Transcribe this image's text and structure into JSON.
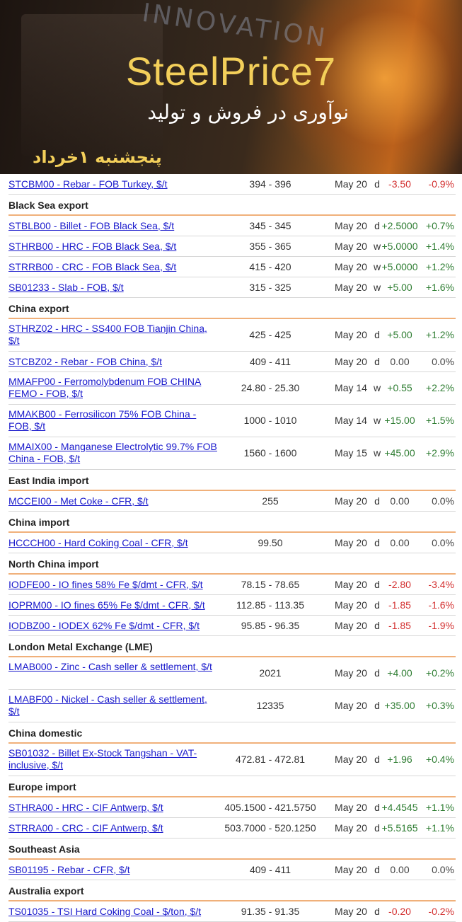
{
  "banner": {
    "brand": "SteelPrice7",
    "tagline": "نوآوری در فروش و تولید",
    "date": "پنجشنبه ۱خرداد",
    "watermark": "INNOVATION",
    "accent": "#f3cf5a"
  },
  "rows": [
    {
      "type": "item",
      "name": "STCBM00 - Rebar - FOB Turkey, $/t",
      "range": "394 - 396",
      "date": "May 20",
      "freq": "d",
      "chg": "-3.50",
      "pct": "-0.9%",
      "dir": "neg",
      "h": 28
    },
    {
      "type": "section",
      "name": "Black Sea export"
    },
    {
      "type": "item",
      "name": "STBLB00 - Billet - FOB Black Sea, $/t",
      "range": "345 - 345",
      "date": "May 20",
      "freq": "d",
      "chg": "+2.5000",
      "pct": "+0.7%",
      "dir": "pos",
      "h": 28
    },
    {
      "type": "item",
      "name": "STHRB00 - HRC - FOB Black Sea, $/t",
      "range": "355 - 365",
      "date": "May 20",
      "freq": "w",
      "chg": "+5.0000",
      "pct": "+1.4%",
      "dir": "pos",
      "h": 28
    },
    {
      "type": "item",
      "name": "STRRB00 - CRC - FOB Black Sea, $/t",
      "range": "415 - 420",
      "date": "May 20",
      "freq": "w",
      "chg": "+5.0000",
      "pct": "+1.2%",
      "dir": "pos",
      "h": 28
    },
    {
      "type": "item",
      "name": "SB01233 - Slab - FOB, $/t",
      "range": "315 - 325",
      "date": "May 20",
      "freq": "w",
      "chg": "+5.00",
      "pct": "+1.6%",
      "dir": "pos",
      "h": 28
    },
    {
      "type": "section",
      "name": "China export"
    },
    {
      "type": "item",
      "name": "STHRZ02 - HRC - SS400 FOB Tianjin China, $/t",
      "range": "425 - 425",
      "date": "May 20",
      "freq": "d",
      "chg": "+5.00",
      "pct": "+1.2%",
      "dir": "pos",
      "h": 45
    },
    {
      "type": "item",
      "name": "STCBZ02 - Rebar - FOB China, $/t",
      "range": "409 - 411",
      "date": "May 20",
      "freq": "d",
      "chg": "0.00",
      "pct": "0.0%",
      "dir": "zero",
      "h": 28
    },
    {
      "type": "item",
      "name": "MMAFP00 - Ferromolybdenum FOB CHINA FEMO - FOB, $/t",
      "range": "24.80 - 25.30",
      "date": "May 14",
      "freq": "w",
      "chg": "+0.55",
      "pct": "+2.2%",
      "dir": "pos",
      "h": 45
    },
    {
      "type": "item",
      "name": "MMAKB00 - Ferrosilicon 75% FOB China - FOB, $/t",
      "range": "1000 - 1010",
      "date": "May 14",
      "freq": "w",
      "chg": "+15.00",
      "pct": "+1.5%",
      "dir": "pos",
      "h": 45
    },
    {
      "type": "item",
      "name": "MMAIX00 - Manganese Electrolytic 99.7% FOB China - FOB, $/t",
      "range": "1560 - 1600",
      "date": "May 15",
      "freq": "w",
      "chg": "+45.00",
      "pct": "+2.9%",
      "dir": "pos",
      "h": 45
    },
    {
      "type": "section",
      "name": "East India import"
    },
    {
      "type": "item",
      "name": "MCCEI00 - Met Coke - CFR, $/t",
      "range": "255",
      "date": "May 20",
      "freq": "d",
      "chg": "0.00",
      "pct": "0.0%",
      "dir": "zero",
      "h": 28
    },
    {
      "type": "section",
      "name": "China import"
    },
    {
      "type": "item",
      "name": "HCCCH00 - Hard Coking Coal - CFR, $/t",
      "range": "99.50",
      "date": "May 20",
      "freq": "d",
      "chg": "0.00",
      "pct": "0.0%",
      "dir": "zero",
      "h": 28
    },
    {
      "type": "section",
      "name": "North China import"
    },
    {
      "type": "item",
      "name": "IODFE00 - IO fines 58% Fe $/dmt - CFR, $/t",
      "range": "78.15 - 78.65",
      "date": "May 20",
      "freq": "d",
      "chg": "-2.80",
      "pct": "-3.4%",
      "dir": "neg",
      "h": 28
    },
    {
      "type": "item",
      "name": "IOPRM00 - IO fines 65% Fe $/dmt - CFR, $/t",
      "range": "112.85 - 113.35",
      "date": "May 20",
      "freq": "d",
      "chg": "-1.85",
      "pct": "-1.6%",
      "dir": "neg",
      "h": 28
    },
    {
      "type": "item",
      "name": "IODBZ00 - IODEX 62% Fe $/dmt - CFR, $/t",
      "range": "95.85 - 96.35",
      "date": "May 20",
      "freq": "d",
      "chg": "-1.85",
      "pct": "-1.9%",
      "dir": "neg",
      "h": 28
    },
    {
      "type": "section",
      "name": "London Metal Exchange (LME)"
    },
    {
      "type": "item",
      "name": "LMAB000 - Zinc - Cash seller & settlement, $/t",
      "range": "2021",
      "date": "May 20",
      "freq": "d",
      "chg": "+4.00",
      "pct": "+0.2%",
      "dir": "pos",
      "h": 45
    },
    {
      "type": "item",
      "name": "LMABF00 - Nickel - Cash seller & settlement, $/t",
      "range": "12335",
      "date": "May 20",
      "freq": "d",
      "chg": "+35.00",
      "pct": "+0.3%",
      "dir": "pos",
      "h": 45
    },
    {
      "type": "section",
      "name": "China domestic"
    },
    {
      "type": "item",
      "name": "SB01032 - Billet Ex-Stock Tangshan - VAT-inclusive, $/t",
      "range": "472.81 - 472.81",
      "date": "May 20",
      "freq": "d",
      "chg": "+1.96",
      "pct": "+0.4%",
      "dir": "pos",
      "h": 45
    },
    {
      "type": "section",
      "name": "Europe import"
    },
    {
      "type": "item",
      "name": "STHRA00 - HRC - CIF Antwerp, $/t",
      "range": "405.1500 - 421.5750",
      "date": "May 20",
      "freq": "d",
      "chg": "+4.4545",
      "pct": "+1.1%",
      "dir": "pos",
      "h": 28
    },
    {
      "type": "item",
      "name": "STRRA00 - CRC - CIF Antwerp, $/t",
      "range": "503.7000 - 520.1250",
      "date": "May 20",
      "freq": "d",
      "chg": "+5.5165",
      "pct": "+1.1%",
      "dir": "pos",
      "h": 28
    },
    {
      "type": "section",
      "name": "Southeast Asia"
    },
    {
      "type": "item",
      "name": "SB01195 - Rebar - CFR, $/t",
      "range": "409 - 411",
      "date": "May 20",
      "freq": "d",
      "chg": "0.00",
      "pct": "0.0%",
      "dir": "zero",
      "h": 28
    },
    {
      "type": "section",
      "name": "Australia export"
    },
    {
      "type": "item",
      "name": "TS01035 - TSI Hard Coking Coal - $/ton, $/t",
      "range": "91.35 - 91.35",
      "date": "May 20",
      "freq": "d",
      "chg": "-0.20",
      "pct": "-0.2%",
      "dir": "neg",
      "h": 28
    }
  ]
}
